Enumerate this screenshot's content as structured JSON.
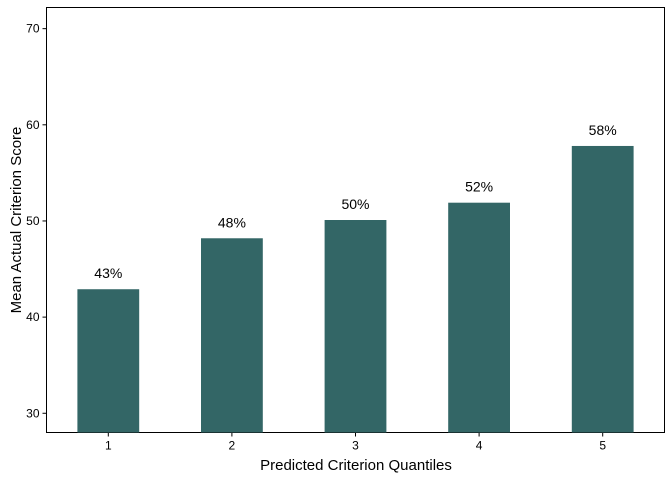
{
  "chart_data": {
    "type": "bar",
    "title": "",
    "xlabel": "Predicted Criterion Quantiles",
    "ylabel": "Mean Actual Criterion Score",
    "categories": [
      "1",
      "2",
      "3",
      "4",
      "5"
    ],
    "values": [
      42.9,
      48.2,
      50.1,
      51.9,
      57.8
    ],
    "data_labels": [
      "43%",
      "48%",
      "50%",
      "52%",
      "58%"
    ],
    "ylim": [
      28,
      72.2
    ],
    "yticks": [
      30,
      40,
      50,
      60,
      70
    ],
    "grid": false,
    "bar_color": "#336666",
    "legend": "none"
  }
}
